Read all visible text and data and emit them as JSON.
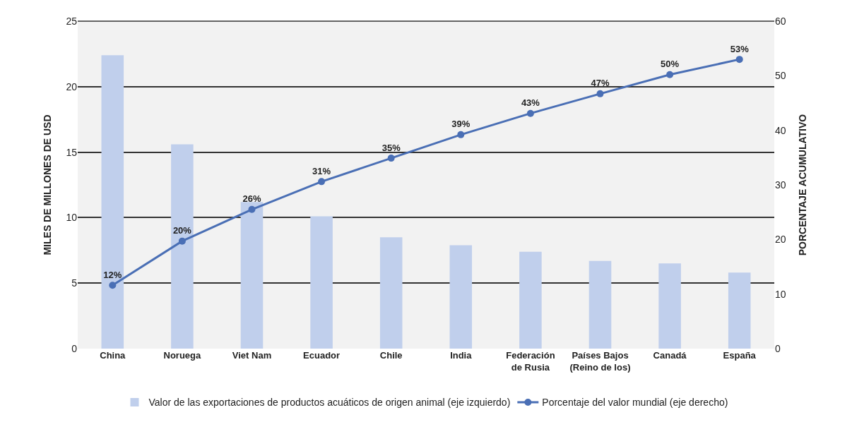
{
  "chart_data": {
    "type": "bar",
    "ylabel": "MILES DE MILLONES DE USD",
    "y2label": "PORCENTAJE ACUMULATIVO",
    "categories": [
      "China",
      "Noruega",
      "Viet Nam",
      "Ecuador",
      "Chile",
      "India",
      "Federación\nde Rusia",
      "Países Bajos\n(Reino de los)",
      "Canadá",
      "España"
    ],
    "series": [
      {
        "name": "Valor de las exportaciones de productos acuáticos de origen animal (eje izquierdo)",
        "color": "#c0cfec",
        "values": [
          22.4,
          15.6,
          11.2,
          10.1,
          8.5,
          7.9,
          7.4,
          6.7,
          6.5,
          5.8
        ]
      },
      {
        "name": "Porcentaje del valor mundial (eje derecho)",
        "type": "line",
        "axis": "y2",
        "color": "#4a6fb5",
        "marker": "circle",
        "values": [
          11.6,
          19.7,
          25.5,
          30.6,
          34.9,
          39.2,
          43.1,
          46.7,
          50.2,
          53.0
        ],
        "value_labels": [
          "12%",
          "20%",
          "26%",
          "31%",
          "35%",
          "39%",
          "43%",
          "47%",
          "50%",
          "53%"
        ]
      }
    ],
    "ylim": [
      0,
      25
    ],
    "yticks": [
      0,
      5,
      10,
      15,
      20,
      25
    ],
    "y2lim": [
      0,
      60
    ],
    "y2ticks": [
      0,
      10,
      20,
      30,
      40,
      50,
      60
    ],
    "grid": "y",
    "legend": "bottom"
  }
}
